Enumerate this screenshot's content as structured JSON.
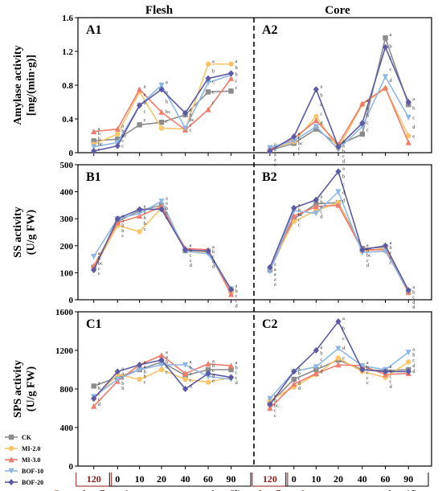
{
  "figure": {
    "columns": [
      "Flesh",
      "Core"
    ],
    "x_tick_labels": [
      "120",
      "0",
      "10",
      "20",
      "40",
      "60",
      "90"
    ],
    "x_label_left": "Days after flowering",
    "x_label_right": "storage time (d)"
  },
  "legend": [
    {
      "name": "CK",
      "color": "#8c8c8c",
      "marker": "square"
    },
    {
      "name": "MI-2.0",
      "color": "#f7c56a",
      "marker": "circle"
    },
    {
      "name": "MI-3.0",
      "color": "#f07b6b",
      "marker": "triangle"
    },
    {
      "name": "BOF-10",
      "color": "#8fb6e3",
      "marker": "down-triangle"
    },
    {
      "name": "BOF-20",
      "color": "#5b5aa3",
      "marker": "diamond"
    }
  ],
  "chart_data": [
    {
      "type": "line",
      "panel": "A1",
      "column": "Flesh",
      "ylabel_line1": "Amylase activity",
      "ylabel_line2": "[mg/(min·g)]",
      "ylim": [
        0,
        1.6
      ],
      "yticks": [
        "0",
        "0.4",
        "0.8",
        "1.2",
        "1.6"
      ],
      "categories": [
        "120",
        "0",
        "10",
        "20",
        "40",
        "60",
        "90"
      ],
      "series": [
        {
          "name": "CK",
          "values": [
            0.14,
            0.16,
            0.33,
            0.36,
            0.45,
            0.72,
            0.73
          ]
        },
        {
          "name": "MI-2.0",
          "values": [
            0.1,
            0.22,
            0.72,
            0.29,
            0.28,
            1.05,
            1.05
          ]
        },
        {
          "name": "MI-3.0",
          "values": [
            0.25,
            0.28,
            0.75,
            0.48,
            0.27,
            0.51,
            0.88
          ]
        },
        {
          "name": "BOF-10",
          "values": [
            0.07,
            0.12,
            0.56,
            0.8,
            0.29,
            0.83,
            0.92
          ]
        },
        {
          "name": "BOF-20",
          "values": [
            0.02,
            0.08,
            0.56,
            0.75,
            0.47,
            0.88,
            0.94
          ]
        }
      ],
      "significance": [
        {
          "x": "120",
          "labels": "a b b bc c"
        },
        {
          "x": "0",
          "labels": "a b bc c c"
        },
        {
          "x": "10",
          "labels": "a a b c c"
        },
        {
          "x": "20",
          "labels": "a a b bc c"
        },
        {
          "x": "40",
          "labels": "a b bc c c"
        },
        {
          "x": "60",
          "labels": "a b c c c"
        },
        {
          "x": "90",
          "labels": "a b b c c"
        }
      ]
    },
    {
      "type": "line",
      "panel": "A2",
      "column": "Core",
      "ylim": [
        0,
        1.6
      ],
      "categories": [
        "120",
        "0",
        "10",
        "20",
        "40",
        "60",
        "90"
      ],
      "series": [
        {
          "name": "CK",
          "values": [
            0.03,
            0.11,
            0.28,
            0.09,
            0.22,
            1.36,
            0.57
          ]
        },
        {
          "name": "MI-2.0",
          "values": [
            0.05,
            0.13,
            0.43,
            0.05,
            0.57,
            0.76,
            0.2
          ]
        },
        {
          "name": "MI-3.0",
          "values": [
            0.04,
            0.17,
            0.38,
            0.1,
            0.58,
            0.77,
            0.12
          ]
        },
        {
          "name": "BOF-10",
          "values": [
            0.06,
            0.14,
            0.31,
            0.04,
            0.31,
            0.9,
            0.42
          ]
        },
        {
          "name": "BOF-20",
          "values": [
            0.02,
            0.19,
            0.75,
            0.07,
            0.35,
            1.25,
            0.6
          ]
        }
      ],
      "significance": [
        {
          "x": "120",
          "labels": "a a a a a"
        },
        {
          "x": "0",
          "labels": "a b bc c c"
        },
        {
          "x": "10",
          "labels": "a b c c d"
        },
        {
          "x": "20",
          "labels": "a a b c d"
        },
        {
          "x": "40",
          "labels": "a a b c c"
        },
        {
          "x": "60",
          "labels": "a b c c d"
        },
        {
          "x": "90",
          "labels": "a b c d e"
        }
      ]
    },
    {
      "type": "line",
      "panel": "B1",
      "column": "Flesh",
      "ylabel_line1": "SS activity",
      "ylabel_line2": "(U/g FW)",
      "ylim": [
        0,
        500
      ],
      "yticks": [
        "0",
        "100",
        "200",
        "300",
        "400",
        "500"
      ],
      "categories": [
        "120",
        "0",
        "10",
        "20",
        "40",
        "60",
        "90"
      ],
      "series": [
        {
          "name": "CK",
          "values": [
            120,
            290,
            330,
            350,
            182,
            180,
            35
          ]
        },
        {
          "name": "MI-2.0",
          "values": [
            115,
            275,
            252,
            340,
            185,
            175,
            25
          ]
        },
        {
          "name": "MI-3.0",
          "values": [
            125,
            285,
            310,
            345,
            190,
            185,
            20
          ]
        },
        {
          "name": "BOF-10",
          "values": [
            160,
            300,
            320,
            365,
            180,
            170,
            40
          ]
        },
        {
          "name": "BOF-20",
          "values": [
            110,
            300,
            335,
            335,
            185,
            180,
            38
          ]
        }
      ],
      "significance": [
        {
          "x": "120",
          "labels": "a b bc c c"
        },
        {
          "x": "0",
          "labels": "a a b b c"
        },
        {
          "x": "10",
          "labels": "a a b b c"
        },
        {
          "x": "20",
          "labels": "a a b c c"
        },
        {
          "x": "40",
          "labels": "a b c c d"
        },
        {
          "x": "60",
          "labels": "a b c d d"
        },
        {
          "x": "90",
          "labels": "a b c c d"
        }
      ]
    },
    {
      "type": "line",
      "panel": "B2",
      "column": "Core",
      "ylim": [
        0,
        500
      ],
      "categories": [
        "120",
        "0",
        "10",
        "20",
        "40",
        "60",
        "90"
      ],
      "series": [
        {
          "name": "CK",
          "values": [
            110,
            300,
            355,
            360,
            190,
            195,
            30
          ]
        },
        {
          "name": "MI-2.0",
          "values": [
            120,
            290,
            330,
            360,
            180,
            190,
            25
          ]
        },
        {
          "name": "MI-3.0",
          "values": [
            115,
            310,
            345,
            350,
            185,
            185,
            28
          ]
        },
        {
          "name": "BOF-10",
          "values": [
            105,
            330,
            320,
            400,
            175,
            180,
            32
          ]
        },
        {
          "name": "BOF-20",
          "values": [
            120,
            340,
            370,
            475,
            185,
            200,
            35
          ]
        }
      ],
      "significance": [
        {
          "x": "120",
          "labels": "a a a a a"
        },
        {
          "x": "0",
          "labels": "a b bc c c"
        },
        {
          "x": "10",
          "labels": "a b c c d"
        },
        {
          "x": "20",
          "labels": "a b c d d"
        },
        {
          "x": "40",
          "labels": "a b bc c d"
        },
        {
          "x": "60",
          "labels": "a b c c c"
        },
        {
          "x": "90",
          "labels": "a b c d d"
        }
      ]
    },
    {
      "type": "line",
      "panel": "C1",
      "column": "Flesh",
      "ylabel_line1": "SPS activity",
      "ylabel_line2": "(U/g FW)",
      "ylim": [
        0,
        1600
      ],
      "yticks": [
        "0",
        "400",
        "800",
        "1200",
        "1600"
      ],
      "categories": [
        "120",
        "0",
        "10",
        "20",
        "40",
        "60",
        "90"
      ],
      "series": [
        {
          "name": "CK",
          "values": [
            830,
            920,
            1000,
            1080,
            940,
            1000,
            1000
          ]
        },
        {
          "name": "MI-2.0",
          "values": [
            700,
            950,
            900,
            1000,
            900,
            870,
            920
          ]
        },
        {
          "name": "MI-3.0",
          "values": [
            620,
            880,
            1050,
            1150,
            960,
            1060,
            1040
          ]
        },
        {
          "name": "BOF-10",
          "values": [
            720,
            900,
            1000,
            1050,
            1050,
            930,
            900
          ]
        },
        {
          "name": "BOF-20",
          "values": [
            700,
            980,
            1050,
            1100,
            800,
            960,
            920
          ]
        }
      ],
      "significance": [
        {
          "x": "120",
          "labels": "a b c c d"
        },
        {
          "x": "0",
          "labels": "a a b b b"
        },
        {
          "x": "10",
          "labels": "a a b b c"
        },
        {
          "x": "20",
          "labels": "a a b c c"
        },
        {
          "x": "40",
          "labels": "a b c c d"
        },
        {
          "x": "60",
          "labels": "a b c d e"
        },
        {
          "x": "90",
          "labels": "a b c c d"
        }
      ]
    },
    {
      "type": "line",
      "panel": "C2",
      "column": "Core",
      "ylim": [
        0,
        1600
      ],
      "categories": [
        "120",
        "0",
        "10",
        "20",
        "40",
        "60",
        "90"
      ],
      "series": [
        {
          "name": "CK",
          "values": [
            650,
            900,
            1000,
            1100,
            1000,
            990,
            1000
          ]
        },
        {
          "name": "MI-2.0",
          "values": [
            680,
            820,
            950,
            1120,
            980,
            920,
            1080
          ]
        },
        {
          "name": "MI-3.0",
          "values": [
            600,
            850,
            960,
            1050,
            1040,
            950,
            960
          ]
        },
        {
          "name": "BOF-10",
          "values": [
            700,
            980,
            1030,
            1220,
            1040,
            1000,
            1180
          ]
        },
        {
          "name": "BOF-20",
          "values": [
            640,
            980,
            1200,
            1500,
            1000,
            980,
            980
          ]
        }
      ],
      "significance": [
        {
          "x": "120",
          "labels": "a b bc c c"
        },
        {
          "x": "0",
          "labels": "a b c d d"
        },
        {
          "x": "10",
          "labels": "a b c c d"
        },
        {
          "x": "20",
          "labels": "a b c d e"
        },
        {
          "x": "40",
          "labels": "a b c c c"
        },
        {
          "x": "60",
          "labels": "a b c c d"
        },
        {
          "x": "90",
          "labels": "a b c d d"
        }
      ]
    }
  ]
}
